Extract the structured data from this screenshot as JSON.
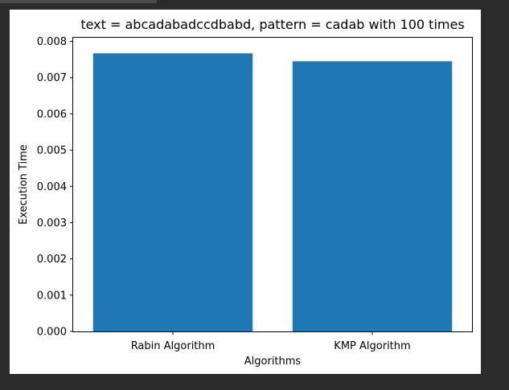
{
  "window": {
    "background": "#2b2b2b"
  },
  "chart_data": {
    "type": "bar",
    "title": "text = abcadabadccdbabd, pattern = cadab  with 100 times",
    "xlabel": "Algorithms",
    "ylabel": "Execution Time",
    "categories": [
      "Rabin Algorithm",
      "KMP Algorithm"
    ],
    "values": [
      0.00767,
      0.00745
    ],
    "ylim": [
      0,
      0.0081
    ],
    "yticks": [
      0.0,
      0.001,
      0.002,
      0.003,
      0.004,
      0.005,
      0.006,
      0.007,
      0.008
    ],
    "ytick_labels": [
      "0.000",
      "0.001",
      "0.002",
      "0.003",
      "0.004",
      "0.005",
      "0.006",
      "0.007",
      "0.008"
    ],
    "bar_color": "#1f77b4",
    "grid": false,
    "legend": "none"
  }
}
